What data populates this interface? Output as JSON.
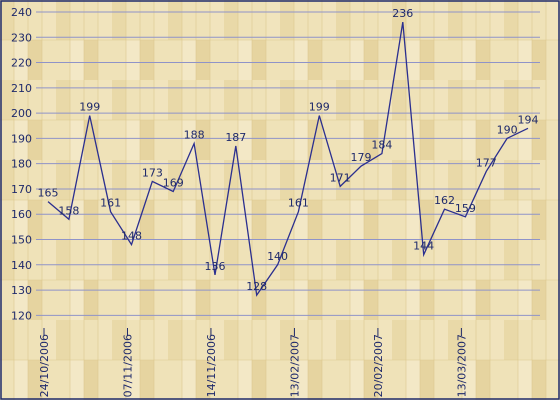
{
  "chart_data": {
    "type": "line",
    "title": "",
    "xlabel": "",
    "ylabel": "",
    "ylim": [
      115,
      240
    ],
    "y_ticks": [
      120,
      130,
      140,
      150,
      160,
      170,
      180,
      190,
      200,
      210,
      220,
      230,
      240
    ],
    "x_tick_labels": [
      "24/10/2006",
      "07/11/2006",
      "14/11/2006",
      "13/02/2007",
      "20/02/2007",
      "13/03/2007"
    ],
    "grid": true,
    "legend": "none",
    "colors": {
      "line": "#2b2f8f",
      "grid": "#8f93c8",
      "text": "#1f2a6b",
      "background": "#efe2b8",
      "border": "#1f2a6b"
    },
    "series": [
      {
        "values": [
          165,
          158,
          199,
          161,
          148,
          173,
          169,
          188,
          136,
          187,
          128,
          140,
          161,
          199,
          171,
          179,
          184,
          236,
          144,
          162,
          159,
          177,
          190,
          194
        ],
        "labels": [
          "165",
          "158",
          "199",
          "161",
          "148",
          "173",
          "169",
          "188",
          "136",
          "187",
          "128",
          "140",
          "161",
          "199",
          "171",
          "179",
          "184",
          "236",
          "144",
          "162",
          "159",
          "177",
          "190",
          "194"
        ]
      }
    ]
  }
}
